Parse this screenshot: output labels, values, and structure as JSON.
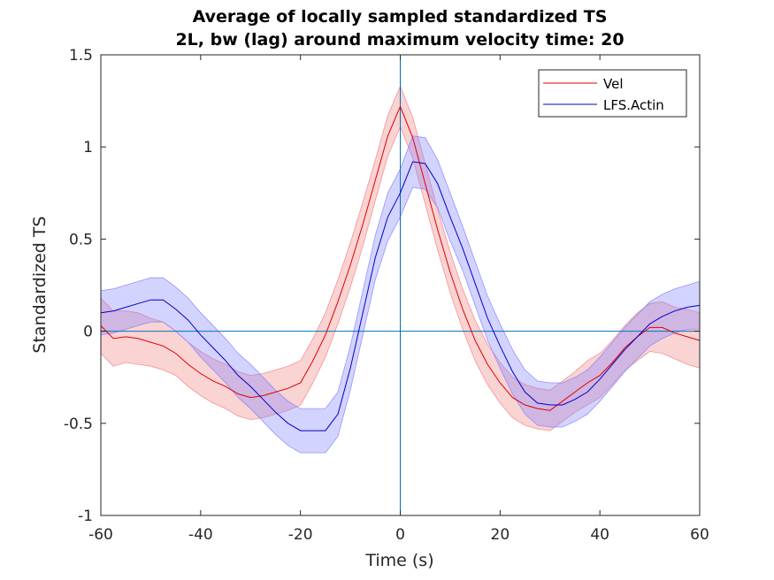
{
  "chart_data": {
    "type": "line",
    "title": "Average of locally sampled standardized TS",
    "subtitle": "2L, bw (lag) around maximum velocity time: 20",
    "xlabel": "Time (s)",
    "ylabel": "Standardized TS",
    "xlim": [
      -60,
      60
    ],
    "ylim": [
      -1,
      1.5
    ],
    "xticks": [
      "-60",
      "-40",
      "-20",
      "0",
      "20",
      "40",
      "60"
    ],
    "yticks": [
      "1.5",
      "1",
      "0.5",
      "0",
      "-0.5",
      "-1"
    ],
    "grid": false,
    "legend_position": "top-right",
    "reference_lines": {
      "x": 0,
      "y": 0,
      "color": "#0072bd"
    },
    "x": [
      -60,
      -57.5,
      -55,
      -52.5,
      -50,
      -47.5,
      -45,
      -42.5,
      -40,
      -37.5,
      -35,
      -32.5,
      -30,
      -27.5,
      -25,
      -22.5,
      -20,
      -17.5,
      -15,
      -12.5,
      -10,
      -7.5,
      -5,
      -2.5,
      0,
      2.5,
      5,
      7.5,
      10,
      12.5,
      15,
      17.5,
      20,
      22.5,
      25,
      27.5,
      30,
      32.5,
      35,
      37.5,
      40,
      42.5,
      45,
      47.5,
      50,
      52.5,
      55,
      57.5,
      60
    ],
    "series": [
      {
        "name": "Vel",
        "color": "#e00000",
        "band_color": "#f08080",
        "values": [
          0.03,
          -0.04,
          -0.03,
          -0.04,
          -0.06,
          -0.08,
          -0.12,
          -0.18,
          -0.23,
          -0.27,
          -0.3,
          -0.34,
          -0.36,
          -0.35,
          -0.33,
          -0.31,
          -0.28,
          -0.16,
          -0.02,
          0.16,
          0.36,
          0.58,
          0.82,
          1.06,
          1.22,
          1.05,
          0.8,
          0.55,
          0.32,
          0.12,
          -0.05,
          -0.18,
          -0.28,
          -0.36,
          -0.4,
          -0.42,
          -0.43,
          -0.38,
          -0.33,
          -0.28,
          -0.24,
          -0.17,
          -0.09,
          -0.03,
          0.02,
          0.02,
          -0.01,
          -0.03,
          -0.05
        ],
        "band": [
          0.15,
          0.15,
          0.14,
          0.14,
          0.13,
          0.13,
          0.12,
          0.12,
          0.12,
          0.12,
          0.12,
          0.12,
          0.12,
          0.12,
          0.12,
          0.12,
          0.12,
          0.12,
          0.12,
          0.12,
          0.12,
          0.12,
          0.11,
          0.11,
          0.11,
          0.11,
          0.11,
          0.11,
          0.11,
          0.11,
          0.11,
          0.11,
          0.11,
          0.11,
          0.11,
          0.11,
          0.11,
          0.11,
          0.11,
          0.12,
          0.12,
          0.12,
          0.12,
          0.13,
          0.13,
          0.14,
          0.14,
          0.15,
          0.15
        ]
      },
      {
        "name": "LFS.Actin",
        "color": "#0000c8",
        "band_color": "#8080ff",
        "values": [
          0.1,
          0.11,
          0.13,
          0.15,
          0.17,
          0.17,
          0.12,
          0.06,
          -0.02,
          -0.09,
          -0.16,
          -0.24,
          -0.3,
          -0.37,
          -0.44,
          -0.5,
          -0.54,
          -0.54,
          -0.54,
          -0.45,
          -0.2,
          0.1,
          0.4,
          0.62,
          0.75,
          0.92,
          0.91,
          0.8,
          0.62,
          0.45,
          0.26,
          0.07,
          -0.08,
          -0.22,
          -0.33,
          -0.39,
          -0.4,
          -0.4,
          -0.37,
          -0.33,
          -0.26,
          -0.18,
          -0.1,
          -0.03,
          0.04,
          0.08,
          0.11,
          0.13,
          0.14
        ]
      }
    ],
    "series_bands": [
      [
        0.12,
        0.12,
        0.12,
        0.12,
        0.12,
        0.12,
        0.12,
        0.12,
        0.12,
        0.12,
        0.12,
        0.12,
        0.12,
        0.12,
        0.12,
        0.12,
        0.12,
        0.12,
        0.12,
        0.12,
        0.12,
        0.12,
        0.12,
        0.13,
        0.13,
        0.14,
        0.14,
        0.13,
        0.13,
        0.12,
        0.12,
        0.12,
        0.12,
        0.12,
        0.12,
        0.12,
        0.12,
        0.12,
        0.12,
        0.12,
        0.12,
        0.12,
        0.12,
        0.12,
        0.12,
        0.12,
        0.12,
        0.12,
        0.13
      ]
    ]
  }
}
